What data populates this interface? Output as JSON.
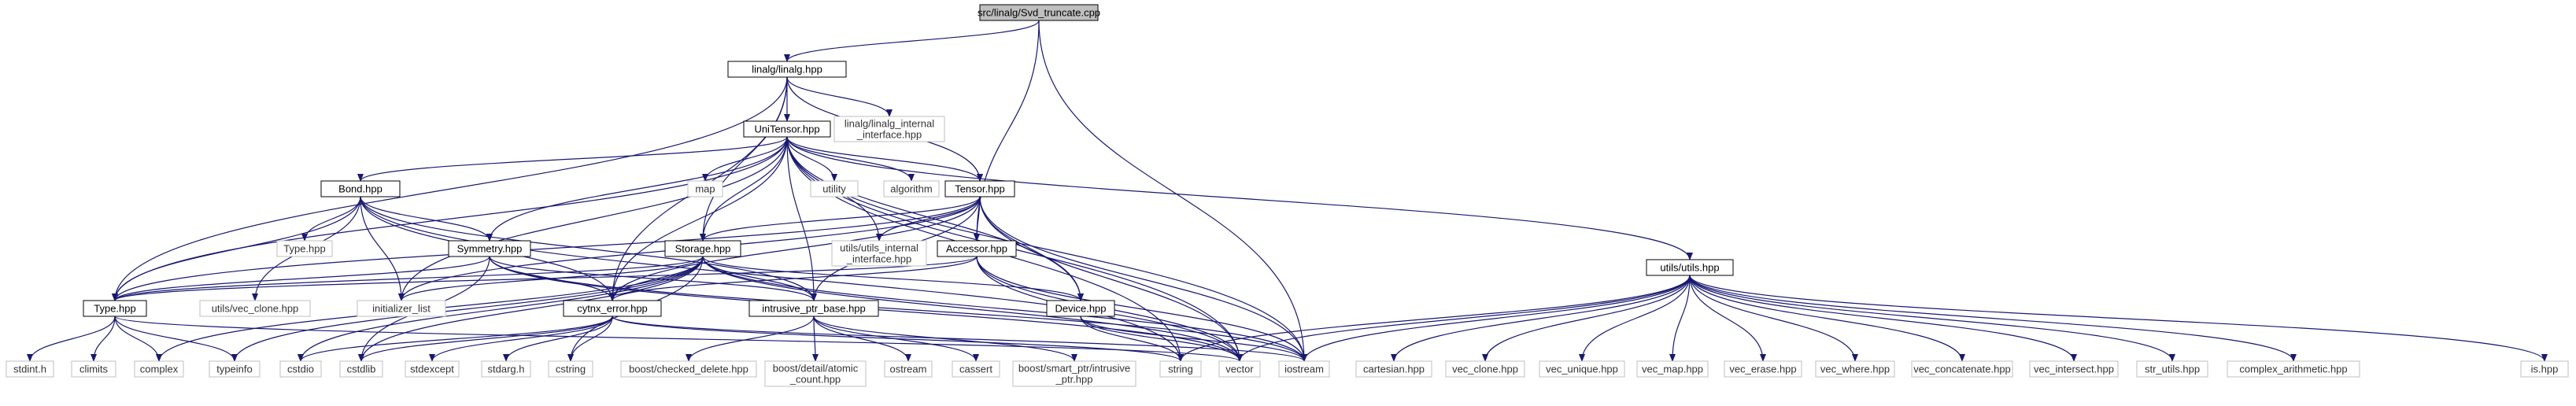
{
  "diagram": {
    "type": "include-dependency-graph",
    "colors": {
      "edge": "#191970",
      "root_fill": "#bfbfbf",
      "node_border": "#000000",
      "external_border": "#bfbfbf"
    },
    "nodes": [
      {
        "id": "root",
        "label": [
          "src/linalg/Svd_truncate.cpp"
        ],
        "kind": "root"
      },
      {
        "id": "linalg",
        "label": [
          "linalg/linalg.hpp"
        ],
        "kind": "doc"
      },
      {
        "id": "unitensor",
        "label": [
          "UniTensor.hpp"
        ],
        "kind": "doc"
      },
      {
        "id": "linalg_internal",
        "label": [
          "linalg/linalg_internal",
          "_interface.hpp"
        ],
        "kind": "ext"
      },
      {
        "id": "bond",
        "label": [
          "Bond.hpp"
        ],
        "kind": "doc"
      },
      {
        "id": "map",
        "label": [
          "map"
        ],
        "kind": "ext"
      },
      {
        "id": "utility",
        "label": [
          "utility"
        ],
        "kind": "ext"
      },
      {
        "id": "algorithm",
        "label": [
          "algorithm"
        ],
        "kind": "ext"
      },
      {
        "id": "tensor",
        "label": [
          "Tensor.hpp"
        ],
        "kind": "doc"
      },
      {
        "id": "type_hpp_ext",
        "label": [
          "Type.hpp"
        ],
        "kind": "ext"
      },
      {
        "id": "symmetry",
        "label": [
          "Symmetry.hpp"
        ],
        "kind": "doc"
      },
      {
        "id": "storage",
        "label": [
          "Storage.hpp"
        ],
        "kind": "doc"
      },
      {
        "id": "utils_internal",
        "label": [
          "utils/utils_internal",
          "_interface.hpp"
        ],
        "kind": "ext"
      },
      {
        "id": "accessor",
        "label": [
          "Accessor.hpp"
        ],
        "kind": "doc"
      },
      {
        "id": "type",
        "label": [
          "Type.hpp"
        ],
        "kind": "doc"
      },
      {
        "id": "vec_clone_utils",
        "label": [
          "utils/vec_clone.hpp"
        ],
        "kind": "ext"
      },
      {
        "id": "initializer_list",
        "label": [
          "initializer_list"
        ],
        "kind": "ext"
      },
      {
        "id": "cytnx_error",
        "label": [
          "cytnx_error.hpp"
        ],
        "kind": "doc"
      },
      {
        "id": "intrusive",
        "label": [
          "intrusive_ptr_base.hpp"
        ],
        "kind": "doc"
      },
      {
        "id": "device",
        "label": [
          "Device.hpp"
        ],
        "kind": "doc"
      },
      {
        "id": "utils",
        "label": [
          "utils/utils.hpp"
        ],
        "kind": "doc"
      },
      {
        "id": "stdint",
        "label": [
          "stdint.h"
        ],
        "kind": "ext"
      },
      {
        "id": "climits",
        "label": [
          "climits"
        ],
        "kind": "ext"
      },
      {
        "id": "complex",
        "label": [
          "complex"
        ],
        "kind": "ext"
      },
      {
        "id": "typeinfo",
        "label": [
          "typeinfo"
        ],
        "kind": "ext"
      },
      {
        "id": "cstdio",
        "label": [
          "cstdio"
        ],
        "kind": "ext"
      },
      {
        "id": "cstdlib",
        "label": [
          "cstdlib"
        ],
        "kind": "ext"
      },
      {
        "id": "stdexcept",
        "label": [
          "stdexcept"
        ],
        "kind": "ext"
      },
      {
        "id": "stdarg",
        "label": [
          "stdarg.h"
        ],
        "kind": "ext"
      },
      {
        "id": "cstring",
        "label": [
          "cstring"
        ],
        "kind": "ext"
      },
      {
        "id": "boost_checked",
        "label": [
          "boost/checked_delete.hpp"
        ],
        "kind": "ext"
      },
      {
        "id": "boost_atomic",
        "label": [
          "boost/detail/atomic",
          "_count.hpp"
        ],
        "kind": "ext"
      },
      {
        "id": "ostream",
        "label": [
          "ostream"
        ],
        "kind": "ext"
      },
      {
        "id": "cassert",
        "label": [
          "cassert"
        ],
        "kind": "ext"
      },
      {
        "id": "boost_smart",
        "label": [
          "boost/smart_ptr/intrusive",
          "_ptr.hpp"
        ],
        "kind": "ext"
      },
      {
        "id": "string",
        "label": [
          "string"
        ],
        "kind": "ext"
      },
      {
        "id": "vector",
        "label": [
          "vector"
        ],
        "kind": "ext"
      },
      {
        "id": "iostream",
        "label": [
          "iostream"
        ],
        "kind": "ext"
      },
      {
        "id": "cartesian",
        "label": [
          "cartesian.hpp"
        ],
        "kind": "ext"
      },
      {
        "id": "vec_clone",
        "label": [
          "vec_clone.hpp"
        ],
        "kind": "ext"
      },
      {
        "id": "vec_unique",
        "label": [
          "vec_unique.hpp"
        ],
        "kind": "ext"
      },
      {
        "id": "vec_map",
        "label": [
          "vec_map.hpp"
        ],
        "kind": "ext"
      },
      {
        "id": "vec_erase",
        "label": [
          "vec_erase.hpp"
        ],
        "kind": "ext"
      },
      {
        "id": "vec_where",
        "label": [
          "vec_where.hpp"
        ],
        "kind": "ext"
      },
      {
        "id": "vec_concatenate",
        "label": [
          "vec_concatenate.hpp"
        ],
        "kind": "ext"
      },
      {
        "id": "vec_intersect",
        "label": [
          "vec_intersect.hpp"
        ],
        "kind": "ext"
      },
      {
        "id": "str_utils",
        "label": [
          "str_utils.hpp"
        ],
        "kind": "ext"
      },
      {
        "id": "complex_arith",
        "label": [
          "complex_arithmetic.hpp"
        ],
        "kind": "ext"
      },
      {
        "id": "is_hpp",
        "label": [
          "is.hpp"
        ],
        "kind": "ext"
      }
    ],
    "edges": [
      [
        "root",
        "linalg"
      ],
      [
        "root",
        "accessor"
      ],
      [
        "root",
        "iostream"
      ],
      [
        "linalg",
        "unitensor"
      ],
      [
        "linalg",
        "linalg_internal"
      ],
      [
        "linalg",
        "tensor"
      ],
      [
        "linalg",
        "storage"
      ],
      [
        "linalg",
        "type"
      ],
      [
        "linalg",
        "cytnx_error"
      ],
      [
        "unitensor",
        "bond"
      ],
      [
        "unitensor",
        "map"
      ],
      [
        "unitensor",
        "utility"
      ],
      [
        "unitensor",
        "algorithm"
      ],
      [
        "unitensor",
        "tensor"
      ],
      [
        "unitensor",
        "symmetry"
      ],
      [
        "unitensor",
        "storage"
      ],
      [
        "unitensor",
        "utils_internal"
      ],
      [
        "unitensor",
        "type"
      ],
      [
        "unitensor",
        "initializer_list"
      ],
      [
        "unitensor",
        "cytnx_error"
      ],
      [
        "unitensor",
        "intrusive"
      ],
      [
        "unitensor",
        "device"
      ],
      [
        "unitensor",
        "utils"
      ],
      [
        "unitensor",
        "vector"
      ],
      [
        "unitensor",
        "iostream"
      ],
      [
        "unitensor",
        "string"
      ],
      [
        "bond",
        "type_hpp_ext"
      ],
      [
        "bond",
        "symmetry"
      ],
      [
        "bond",
        "type"
      ],
      [
        "bond",
        "vec_clone_utils"
      ],
      [
        "bond",
        "initializer_list"
      ],
      [
        "bond",
        "cytnx_error"
      ],
      [
        "bond",
        "intrusive"
      ],
      [
        "bond",
        "vector"
      ],
      [
        "tensor",
        "storage"
      ],
      [
        "tensor",
        "accessor"
      ],
      [
        "tensor",
        "utils_internal"
      ],
      [
        "tensor",
        "type"
      ],
      [
        "tensor",
        "initializer_list"
      ],
      [
        "tensor",
        "cytnx_error"
      ],
      [
        "tensor",
        "intrusive"
      ],
      [
        "tensor",
        "device"
      ],
      [
        "tensor",
        "vector"
      ],
      [
        "tensor",
        "iostream"
      ],
      [
        "symmetry",
        "type"
      ],
      [
        "symmetry",
        "cytnx_error"
      ],
      [
        "symmetry",
        "intrusive"
      ],
      [
        "symmetry",
        "vector"
      ],
      [
        "symmetry",
        "iostream"
      ],
      [
        "symmetry",
        "cstdlib"
      ],
      [
        "storage",
        "type"
      ],
      [
        "storage",
        "initializer_list"
      ],
      [
        "storage",
        "cytnx_error"
      ],
      [
        "storage",
        "intrusive"
      ],
      [
        "storage",
        "device"
      ],
      [
        "storage",
        "complex"
      ],
      [
        "storage",
        "typeinfo"
      ],
      [
        "storage",
        "cstdio"
      ],
      [
        "storage",
        "cstdlib"
      ],
      [
        "storage",
        "cstring"
      ],
      [
        "storage",
        "iostream"
      ],
      [
        "storage",
        "vector"
      ],
      [
        "accessor",
        "cytnx_error"
      ],
      [
        "accessor",
        "type"
      ],
      [
        "accessor",
        "vector"
      ],
      [
        "accessor",
        "string"
      ],
      [
        "accessor",
        "iostream"
      ],
      [
        "type",
        "stdint"
      ],
      [
        "type",
        "climits"
      ],
      [
        "type",
        "complex"
      ],
      [
        "type",
        "typeinfo"
      ],
      [
        "type",
        "vector"
      ],
      [
        "cytnx_error",
        "cstdio"
      ],
      [
        "cytnx_error",
        "cstdlib"
      ],
      [
        "cytnx_error",
        "stdexcept"
      ],
      [
        "cytnx_error",
        "stdarg"
      ],
      [
        "cytnx_error",
        "cstring"
      ],
      [
        "cytnx_error",
        "iostream"
      ],
      [
        "cytnx_error",
        "string"
      ],
      [
        "intrusive",
        "boost_checked"
      ],
      [
        "intrusive",
        "boost_atomic"
      ],
      [
        "intrusive",
        "ostream"
      ],
      [
        "intrusive",
        "cassert"
      ],
      [
        "intrusive",
        "boost_smart"
      ],
      [
        "device",
        "string"
      ],
      [
        "device",
        "vector"
      ],
      [
        "device",
        "iostream"
      ],
      [
        "utils",
        "cartesian"
      ],
      [
        "utils",
        "vec_clone"
      ],
      [
        "utils",
        "vec_unique"
      ],
      [
        "utils",
        "vec_map"
      ],
      [
        "utils",
        "vec_erase"
      ],
      [
        "utils",
        "vec_where"
      ],
      [
        "utils",
        "vec_concatenate"
      ],
      [
        "utils",
        "vec_intersect"
      ],
      [
        "utils",
        "str_utils"
      ],
      [
        "utils",
        "complex_arith"
      ],
      [
        "utils",
        "is_hpp"
      ],
      [
        "utils",
        "vector"
      ],
      [
        "utils",
        "string"
      ],
      [
        "utils",
        "iostream"
      ]
    ]
  }
}
